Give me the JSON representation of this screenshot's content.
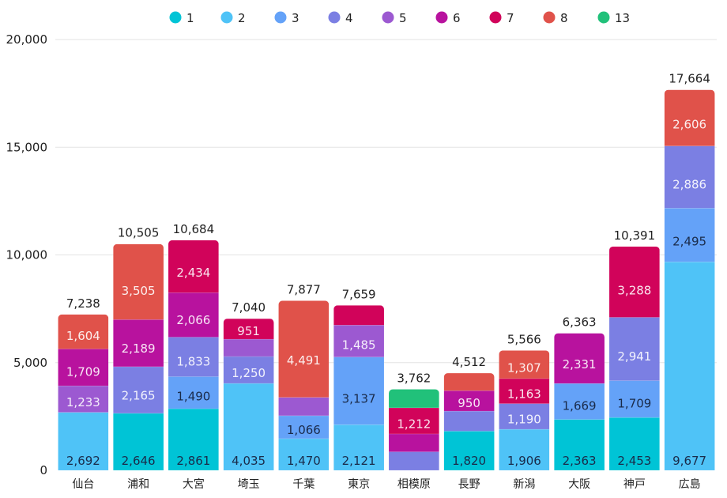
{
  "chart_data": {
    "type": "bar",
    "stacked": true,
    "title": "",
    "xlabel": "",
    "ylabel": "",
    "ylim": [
      0,
      20000
    ],
    "yticks": [
      0,
      5000,
      10000,
      15000,
      20000
    ],
    "ytick_labels": [
      "0",
      "5,000",
      "10,000",
      "15,000",
      "20,000"
    ],
    "grid": true,
    "legend_position": "top-center",
    "categories": [
      "仙台",
      "浦和",
      "大宮",
      "埼玉",
      "千葉",
      "東京",
      "相模原",
      "長野",
      "新潟",
      "大阪",
      "神戸",
      "広島"
    ],
    "totals": [
      7238,
      10505,
      10684,
      7040,
      7877,
      7659,
      3762,
      4512,
      5566,
      6363,
      10391,
      17664
    ],
    "total_labels": [
      "7,238",
      "10,505",
      "10,684",
      "7,040",
      "7,877",
      "7,659",
      "3,762",
      "4,512",
      "5,566",
      "6,363",
      "10,391",
      "17,664"
    ],
    "series": [
      {
        "name": "1",
        "color": "#00c4d6",
        "values": [
          0,
          2646,
          2861,
          0,
          0,
          0,
          0,
          1820,
          0,
          2363,
          2453,
          0
        ]
      },
      {
        "name": "2",
        "color": "#4fc3f7",
        "values": [
          2692,
          0,
          0,
          4035,
          1470,
          2121,
          0,
          0,
          1906,
          0,
          0,
          9677
        ]
      },
      {
        "name": "3",
        "color": "#64a2f8",
        "values": [
          0,
          0,
          1490,
          0,
          1066,
          3137,
          0,
          0,
          0,
          1669,
          1709,
          2495
        ]
      },
      {
        "name": "4",
        "color": "#7b7fe3",
        "values": [
          0,
          2165,
          1833,
          1250,
          0,
          0,
          860,
          930,
          1190,
          0,
          2941,
          2886
        ]
      },
      {
        "name": "5",
        "color": "#9c59d1",
        "values": [
          1233,
          0,
          0,
          804,
          850,
          1485,
          0,
          0,
          0,
          0,
          0,
          0
        ]
      },
      {
        "name": "6",
        "color": "#b8129e",
        "values": [
          1709,
          2189,
          2066,
          0,
          0,
          0,
          830,
          950,
          0,
          2331,
          0,
          0
        ]
      },
      {
        "name": "7",
        "color": "#d1035a",
        "values": [
          0,
          0,
          2434,
          951,
          0,
          916,
          1212,
          0,
          1163,
          0,
          3288,
          0
        ]
      },
      {
        "name": "8",
        "color": "#e0524a",
        "values": [
          1604,
          3505,
          0,
          0,
          4491,
          0,
          0,
          812,
          1307,
          0,
          0,
          2606
        ]
      },
      {
        "name": "13",
        "color": "#21c17a",
        "values": [
          0,
          0,
          0,
          0,
          0,
          0,
          860,
          0,
          0,
          0,
          0,
          0
        ]
      }
    ],
    "segment_labels_shown_min": 950,
    "label_text_colors": {
      "1": "#1a2b4a",
      "2": "#1a2b4a",
      "3": "#1a2b4a",
      "4": "#ffffff",
      "5": "#ffffff",
      "6": "#ffffff",
      "7": "#ffffff",
      "8": "#ffffff",
      "13": "#ffffff"
    }
  }
}
